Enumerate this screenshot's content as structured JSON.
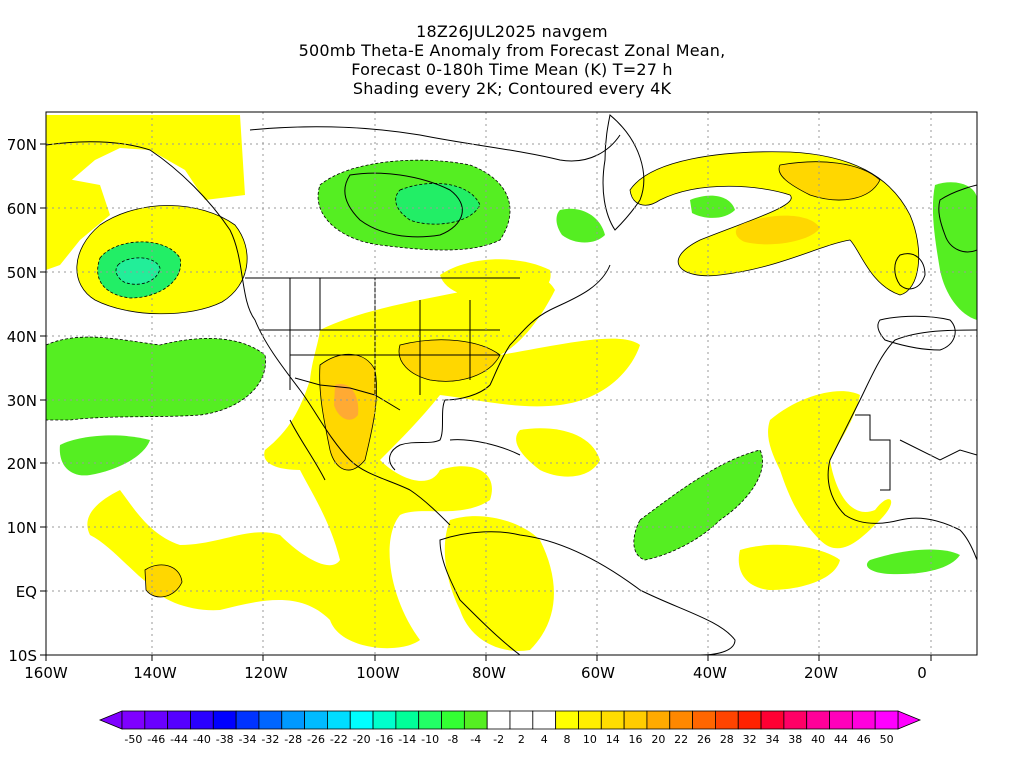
{
  "title": {
    "lines": [
      "18Z26JUL2025 navgem",
      "500mb Theta-E Anomaly from Forecast Zonal Mean,",
      "Forecast 0-180h Time Mean (K) T=27 h",
      "Shading every 2K; Contoured every 4K"
    ]
  },
  "map": {
    "lon_labels": [
      "160W",
      "140W",
      "120W",
      "100W",
      "80W",
      "60W",
      "40W",
      "20W",
      "0"
    ],
    "lat_labels": [
      "70N",
      "60N",
      "50N",
      "40N",
      "30N",
      "20N",
      "10N",
      "EQ",
      "10S"
    ],
    "lon_values": [
      -160,
      -140,
      -120,
      -100,
      -80,
      -60,
      -40,
      -20,
      0
    ],
    "lat_values": [
      70,
      60,
      50,
      40,
      30,
      20,
      10,
      0,
      -10
    ],
    "lon_range": [
      -160,
      7
    ],
    "lat_range": [
      -10,
      75
    ],
    "grid": "dotted",
    "colors": {
      "yellow": "#ffff00",
      "gold": "#ffd700",
      "orange": "#ffaa33",
      "green": "#55ee22",
      "green_dark": "#22ee66",
      "teal": "#22ee99",
      "coast": "#000000"
    }
  },
  "colorbar": {
    "labels": [
      "-50",
      "-46",
      "-44",
      "-40",
      "-38",
      "-34",
      "-32",
      "-28",
      "-26",
      "-22",
      "-20",
      "-16",
      "-14",
      "-10",
      "-8",
      "-4",
      "-2",
      "2",
      "4",
      "8",
      "10",
      "14",
      "16",
      "20",
      "22",
      "26",
      "28",
      "32",
      "34",
      "38",
      "40",
      "44",
      "46",
      "50"
    ],
    "colors": [
      "#7f00ff",
      "#6a00ff",
      "#5500ff",
      "#2a00ff",
      "#0000ff",
      "#0033ff",
      "#0066ff",
      "#0099ff",
      "#00bbff",
      "#00ddff",
      "#00ffff",
      "#00ffcc",
      "#00ff99",
      "#22ff66",
      "#33ff33",
      "#55ee22",
      "#ffffff",
      "#ffffff",
      "#ffffff",
      "#ffff00",
      "#ffee00",
      "#ffdd00",
      "#ffcc00",
      "#ffaa00",
      "#ff8800",
      "#ff6600",
      "#ff4400",
      "#ff2200",
      "#ff0033",
      "#ff0066",
      "#ff0099",
      "#ff00bb",
      "#ff00dd",
      "#ff00ff"
    ]
  }
}
